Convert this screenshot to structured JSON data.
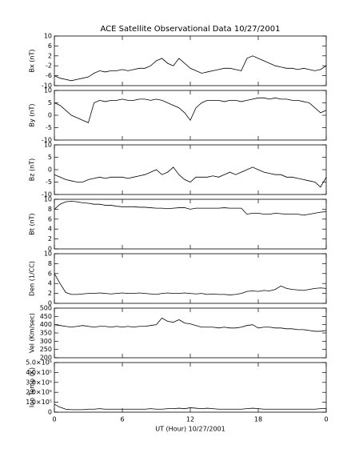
{
  "title": "ACE Satellite Observational Data   10/27/2001",
  "xlabel": "UT (Hour)   10/27/2001",
  "chart_data": [
    {
      "type": "line",
      "ylabel": "Bx (nT)",
      "color": "#000000",
      "x": [
        0,
        0.5,
        1,
        1.5,
        2,
        2.5,
        3,
        3.5,
        4,
        4.5,
        5,
        5.5,
        6,
        6.5,
        7,
        7.5,
        8,
        8.5,
        9,
        9.5,
        10,
        10.5,
        11,
        11.5,
        12,
        12.5,
        13,
        13.5,
        14,
        14.5,
        15,
        15.5,
        16,
        16.5,
        17,
        17.5,
        18,
        18.5,
        19,
        19.5,
        20,
        20.5,
        21,
        21.5,
        22,
        22.5,
        23,
        23.5,
        24
      ],
      "values": [
        -6,
        -7,
        -7.5,
        -8,
        -7.5,
        -7,
        -6.5,
        -5,
        -4,
        -4.5,
        -4,
        -4,
        -3.5,
        -4,
        -3.5,
        -3,
        -3,
        -2,
        0,
        1,
        -1,
        -2,
        1,
        -1,
        -3,
        -4,
        -5,
        -4.5,
        -4,
        -3.5,
        -3,
        -3,
        -3.5,
        -4,
        1,
        2,
        1,
        0,
        -1,
        -2,
        -2.5,
        -3,
        -3,
        -3.5,
        -3,
        -3.5,
        -4,
        -3.5,
        -2
      ],
      "xlim": [
        0,
        24
      ],
      "xticks": [
        0,
        6,
        12,
        18,
        {
          "value": 24,
          "label": "0"
        }
      ],
      "ylim": [
        -10,
        10
      ],
      "yticks": [
        -10,
        -6,
        -2,
        2,
        6,
        10
      ]
    },
    {
      "type": "line",
      "ylabel": "By (nT)",
      "color": "#000000",
      "x": [
        0,
        0.5,
        1,
        1.5,
        2,
        2.5,
        3,
        3.5,
        4,
        4.5,
        5,
        5.5,
        6,
        6.5,
        7,
        7.5,
        8,
        8.5,
        9,
        9.5,
        10,
        10.5,
        11,
        11.5,
        12,
        12.5,
        13,
        13.5,
        14,
        14.5,
        15,
        15.5,
        16,
        16.5,
        17,
        17.5,
        18,
        18.5,
        19,
        19.5,
        20,
        20.5,
        21,
        21.5,
        22,
        22.5,
        23,
        23.5,
        24
      ],
      "values": [
        5,
        4,
        2,
        0,
        -1,
        -2,
        -3,
        5,
        6,
        5.5,
        6,
        6,
        6.5,
        6,
        6,
        6.5,
        6.5,
        6,
        6.5,
        6,
        5,
        4,
        3,
        1,
        -2,
        3,
        5,
        6,
        6,
        6,
        5.5,
        6,
        6,
        5.5,
        6,
        6.5,
        7,
        7,
        6.5,
        7,
        6.5,
        6.5,
        6,
        6,
        5.5,
        5,
        3,
        1,
        2
      ],
      "xlim": [
        0,
        24
      ],
      "xticks": [
        0,
        6,
        12,
        18,
        {
          "value": 24,
          "label": "0"
        }
      ],
      "ylim": [
        -10,
        10
      ],
      "yticks": [
        -10,
        -5,
        0,
        5,
        10
      ]
    },
    {
      "type": "line",
      "ylabel": "Bz (nT)",
      "color": "#000000",
      "x": [
        0,
        0.5,
        1,
        1.5,
        2,
        2.5,
        3,
        3.5,
        4,
        4.5,
        5,
        5.5,
        6,
        6.5,
        7,
        7.5,
        8,
        8.5,
        9,
        9.5,
        10,
        10.5,
        11,
        11.5,
        12,
        12.5,
        13,
        13.5,
        14,
        14.5,
        15,
        15.5,
        16,
        16.5,
        17,
        17.5,
        18,
        18.5,
        19,
        19.5,
        20,
        20.5,
        21,
        21.5,
        22,
        22.5,
        23,
        23.5,
        24
      ],
      "values": [
        -2,
        -3,
        -4,
        -4.5,
        -5,
        -5,
        -4,
        -3.5,
        -3,
        -3.5,
        -3,
        -3,
        -3,
        -3.5,
        -3,
        -2.5,
        -2,
        -1,
        0,
        -2,
        -1,
        1,
        -2,
        -4,
        -5,
        -3,
        -3,
        -3,
        -2.5,
        -3,
        -2,
        -1,
        -2,
        -1,
        0,
        1,
        0,
        -1,
        -1.5,
        -2,
        -2,
        -3,
        -3,
        -3.5,
        -4,
        -4.5,
        -5,
        -7,
        -3
      ],
      "xlim": [
        0,
        24
      ],
      "xticks": [
        0,
        6,
        12,
        18,
        {
          "value": 24,
          "label": "0"
        }
      ],
      "ylim": [
        -10,
        10
      ],
      "yticks": [
        -10,
        -5,
        0,
        5,
        10
      ]
    },
    {
      "type": "line",
      "ylabel": "Bt (nT)",
      "color": "#000000",
      "x": [
        0,
        0.5,
        1,
        1.5,
        2,
        2.5,
        3,
        3.5,
        4,
        4.5,
        5,
        5.5,
        6,
        6.5,
        7,
        7.5,
        8,
        8.5,
        9,
        9.5,
        10,
        10.5,
        11,
        11.5,
        12,
        12.5,
        13,
        13.5,
        14,
        14.5,
        15,
        15.5,
        16,
        16.5,
        17,
        17.5,
        18,
        18.5,
        19,
        19.5,
        20,
        20.5,
        21,
        21.5,
        22,
        22.5,
        23,
        23.5,
        24
      ],
      "values": [
        8,
        9,
        9.5,
        9.6,
        9.5,
        9.3,
        9.2,
        9,
        9,
        8.8,
        8.8,
        8.6,
        8.5,
        8.5,
        8.5,
        8.4,
        8.4,
        8.3,
        8.2,
        8.2,
        8.1,
        8.2,
        8.3,
        8.3,
        8,
        8.2,
        8.2,
        8.2,
        8.2,
        8.2,
        8.3,
        8.2,
        8.2,
        8.2,
        7,
        7.2,
        7.2,
        7,
        7,
        7.2,
        7.1,
        7,
        7,
        7,
        6.8,
        7,
        7.2,
        7.4,
        7.5
      ],
      "xlim": [
        0,
        24
      ],
      "xticks": [
        0,
        6,
        12,
        18,
        {
          "value": 24,
          "label": "0"
        }
      ],
      "ylim": [
        0,
        10
      ],
      "yticks": [
        0,
        2,
        4,
        6,
        8,
        10
      ]
    },
    {
      "type": "line",
      "ylabel": "Den (1/CC)",
      "color": "#000000",
      "x": [
        0,
        0.5,
        1,
        1.5,
        2,
        2.5,
        3,
        3.5,
        4,
        4.5,
        5,
        5.5,
        6,
        6.5,
        7,
        7.5,
        8,
        8.5,
        9,
        9.5,
        10,
        10.5,
        11,
        11.5,
        12,
        12.5,
        13,
        13.5,
        14,
        14.5,
        15,
        15.5,
        16,
        16.5,
        17,
        17.5,
        18,
        18.5,
        19,
        19.5,
        20,
        20.5,
        21,
        21.5,
        22,
        22.5,
        23,
        23.5,
        24
      ],
      "values": [
        6,
        4,
        2.2,
        1.8,
        1.8,
        1.9,
        2,
        2,
        2.1,
        2,
        1.9,
        2,
        2.1,
        2,
        2,
        2.1,
        2,
        1.9,
        1.8,
        2,
        2.1,
        2,
        2,
        2.1,
        2,
        1.9,
        2,
        1.8,
        1.9,
        1.8,
        1.8,
        1.7,
        1.8,
        2,
        2.4,
        2.5,
        2.4,
        2.6,
        2.5,
        2.8,
        3.5,
        3,
        2.8,
        2.7,
        2.6,
        2.8,
        3,
        3.1,
        3
      ],
      "xlim": [
        0,
        24
      ],
      "xticks": [
        0,
        6,
        12,
        18,
        {
          "value": 24,
          "label": "0"
        }
      ],
      "ylim": [
        0,
        10
      ],
      "yticks": [
        0,
        2,
        4,
        6,
        8,
        10
      ]
    },
    {
      "type": "line",
      "ylabel": "Vel (Km/sec)",
      "color": "#000000",
      "x": [
        0,
        0.5,
        1,
        1.5,
        2,
        2.5,
        3,
        3.5,
        4,
        4.5,
        5,
        5.5,
        6,
        6.5,
        7,
        7.5,
        8,
        8.5,
        9,
        9.5,
        10,
        10.5,
        11,
        11.5,
        12,
        12.5,
        13,
        13.5,
        14,
        14.5,
        15,
        15.5,
        16,
        16.5,
        17,
        17.5,
        18,
        18.5,
        19,
        19.5,
        20,
        20.5,
        21,
        21.5,
        22,
        22.5,
        23,
        23.5,
        24
      ],
      "values": [
        400,
        395,
        390,
        385,
        390,
        395,
        390,
        385,
        390,
        390,
        385,
        390,
        385,
        390,
        385,
        390,
        390,
        395,
        400,
        440,
        420,
        415,
        430,
        410,
        405,
        395,
        385,
        385,
        385,
        380,
        385,
        380,
        380,
        385,
        395,
        400,
        380,
        385,
        385,
        380,
        380,
        375,
        375,
        370,
        370,
        365,
        360,
        360,
        365
      ],
      "xlim": [
        0,
        24
      ],
      "xticks": [
        0,
        6,
        12,
        18,
        {
          "value": 24,
          "label": "0"
        }
      ],
      "ylim": [
        200,
        500
      ],
      "yticks": [
        200,
        250,
        300,
        350,
        400,
        450,
        500
      ]
    },
    {
      "type": "line",
      "ylabel": "Ion Temp (K)",
      "color": "#000000",
      "x": [
        0,
        0.5,
        1,
        1.5,
        2,
        2.5,
        3,
        3.5,
        4,
        4.5,
        5,
        5.5,
        6,
        6.5,
        7,
        7.5,
        8,
        8.5,
        9,
        9.5,
        10,
        10.5,
        11,
        11.5,
        12,
        12.5,
        13,
        13.5,
        14,
        14.5,
        15,
        15.5,
        16,
        16.5,
        17,
        17.5,
        18,
        18.5,
        19,
        19.5,
        20,
        20.5,
        21,
        21.5,
        22,
        22.5,
        23,
        23.5,
        24
      ],
      "values": [
        80000,
        50000,
        30000,
        25000,
        25000,
        25000,
        30000,
        30000,
        35000,
        30000,
        30000,
        30000,
        30000,
        30000,
        30000,
        30000,
        30000,
        35000,
        30000,
        30000,
        35000,
        35000,
        40000,
        35000,
        45000,
        40000,
        35000,
        40000,
        35000,
        30000,
        30000,
        30000,
        30000,
        30000,
        35000,
        40000,
        35000,
        30000,
        30000,
        30000,
        30000,
        30000,
        30000,
        30000,
        30000,
        30000,
        30000,
        35000,
        35000
      ],
      "xlim": [
        0,
        24
      ],
      "xticks": [
        0,
        6,
        12,
        18,
        {
          "value": 24,
          "label": "0"
        }
      ],
      "ylim": [
        0,
        500000
      ],
      "yticks": [
        0,
        {
          "value": 100000,
          "label": "1.0×10⁵"
        },
        {
          "value": 200000,
          "label": "2.0×10⁵"
        },
        {
          "value": 300000,
          "label": "3.0×10⁵"
        },
        {
          "value": 400000,
          "label": "4.0×10⁵"
        },
        {
          "value": 500000,
          "label": "5.0×10⁵"
        }
      ]
    }
  ]
}
